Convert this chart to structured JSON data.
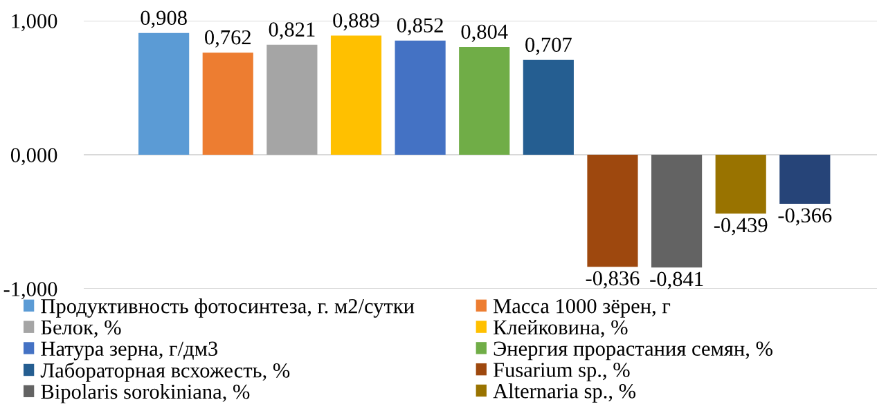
{
  "chart_data": {
    "type": "bar",
    "categories": [
      null
    ],
    "series": [
      {
        "name": "Продуктивность фотосинтеза, г. м2/сутки",
        "color": "#5b9bd5",
        "values": [
          0.908
        ],
        "value_labels": [
          "0,908"
        ]
      },
      {
        "name": "Масса 1000 зёрен, г",
        "color": "#ed7d31",
        "values": [
          0.762
        ],
        "value_labels": [
          "0,762"
        ]
      },
      {
        "name": "Белок, %",
        "color": "#a5a5a5",
        "values": [
          0.821
        ],
        "value_labels": [
          "0,821"
        ]
      },
      {
        "name": "Клейковина, %",
        "color": "#ffc000",
        "values": [
          0.889
        ],
        "value_labels": [
          "0,889"
        ]
      },
      {
        "name": "Натура зерна, г/дм3",
        "color": "#4472c4",
        "values": [
          0.852
        ],
        "value_labels": [
          "0,852"
        ]
      },
      {
        "name": "Энергия прорастания семян, %",
        "color": "#70ad47",
        "values": [
          0.804
        ],
        "value_labels": [
          "0,804"
        ]
      },
      {
        "name": "Лабораторная всхожесть, %",
        "color": "#255e91",
        "values": [
          0.707
        ],
        "value_labels": [
          "0,707"
        ]
      },
      {
        "name": "Fusarium sp., %",
        "color": "#9e480e",
        "values": [
          -0.836
        ],
        "value_labels": [
          "-0,836"
        ]
      },
      {
        "name": "Bipolaris sorokiniana, %",
        "color": "#636363",
        "values": [
          -0.841
        ],
        "value_labels": [
          "-0,841"
        ]
      },
      {
        "name": "Alternaria sp., %",
        "color": "#997300",
        "values": [
          -0.439
        ],
        "value_labels": [
          "-0,439"
        ]
      },
      {
        "color": "#264478",
        "values": [
          -0.366
        ],
        "value_labels": [
          "-0,366"
        ]
      }
    ],
    "ylim": [
      -1,
      1
    ],
    "yticks": [
      {
        "value": -1,
        "label": "-1,000"
      },
      {
        "value": 0,
        "label": "0,000"
      },
      {
        "value": 1,
        "label": "1,000"
      }
    ],
    "grid": "y",
    "legend": "bottom"
  }
}
